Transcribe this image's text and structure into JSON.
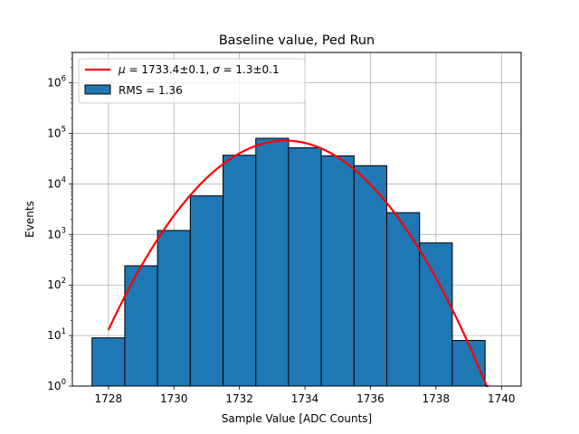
{
  "chart_data": {
    "type": "bar",
    "title": "Baseline value, Ped Run",
    "xlabel": "Sample Value [ADC Counts]",
    "ylabel": "Events",
    "xlim": [
      1726.9,
      1740.6
    ],
    "ylim": [
      1,
      4000000
    ],
    "yscale": "log",
    "grid": true,
    "legend_position": "top-left",
    "xticks": [
      1728,
      1730,
      1732,
      1734,
      1736,
      1738,
      1740
    ],
    "xtick_labels": [
      "1728",
      "1730",
      "1732",
      "1734",
      "1736",
      "1738",
      "1740"
    ],
    "yticks": [
      1,
      10,
      100,
      1000,
      10000,
      100000,
      1000000
    ],
    "ytick_labels": [
      {
        "base": "10",
        "exp": "0"
      },
      {
        "base": "10",
        "exp": "1"
      },
      {
        "base": "10",
        "exp": "2"
      },
      {
        "base": "10",
        "exp": "3"
      },
      {
        "base": "10",
        "exp": "4"
      },
      {
        "base": "10",
        "exp": "5"
      },
      {
        "base": "10",
        "exp": "6"
      }
    ],
    "histogram": {
      "name": "RMS = 1.36",
      "color": "#1f77b4",
      "edgecolor": "#000000",
      "bin_width": 1,
      "bins": [
        {
          "x": 1728,
          "count": 9
        },
        {
          "x": 1729,
          "count": 240
        },
        {
          "x": 1730,
          "count": 1200
        },
        {
          "x": 1731,
          "count": 5800
        },
        {
          "x": 1732,
          "count": 37000
        },
        {
          "x": 1733,
          "count": 80000
        },
        {
          "x": 1734,
          "count": 52000
        },
        {
          "x": 1735,
          "count": 36000
        },
        {
          "x": 1736,
          "count": 23000
        },
        {
          "x": 1737,
          "count": 2700
        },
        {
          "x": 1738,
          "count": 680
        },
        {
          "x": 1739,
          "count": 8
        }
      ]
    },
    "fit": {
      "name": "μ = 1733.4±0.1, σ = 1.3±0.1",
      "label_parts": {
        "mu_symbol": "μ",
        "mu_text": " = 1733.4±0.1, ",
        "sigma_symbol": "σ",
        "sigma_text": " = 1.3±0.1"
      },
      "color": "#ff0000",
      "type": "gaussian",
      "mu": 1733.4,
      "sigma": 1.3,
      "peak": 72000,
      "x_range": [
        1728,
        1739.6
      ]
    }
  }
}
